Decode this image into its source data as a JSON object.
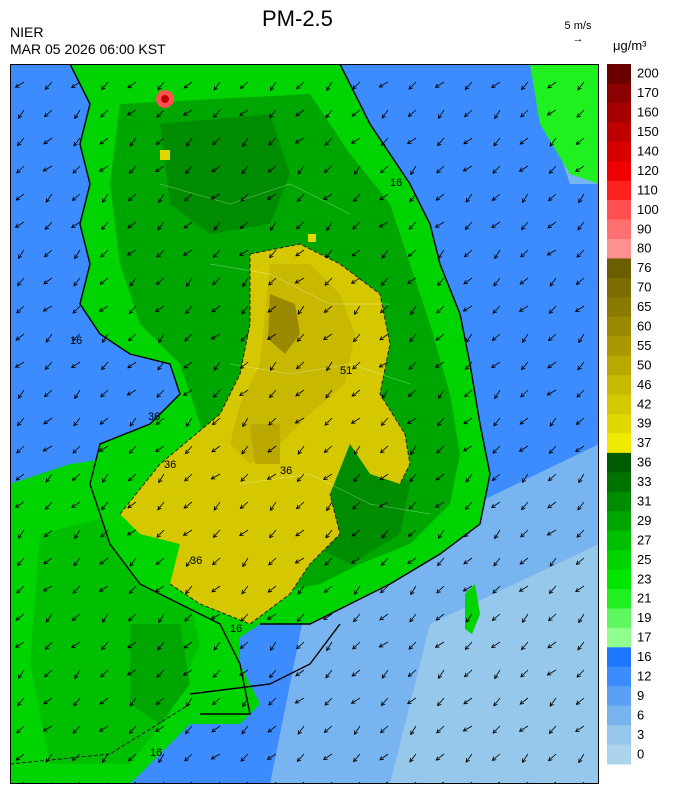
{
  "header": {
    "organization": "NIER",
    "timestamp": "MAR 05 2026 06:00 KST",
    "title": "PM-2.5",
    "wind_reference": "5 m/s",
    "unit": "μg/m³"
  },
  "map": {
    "variable": "PM-2.5",
    "wind_direction": "northeasterly (arrows pointing southwest)",
    "contour_labels": [
      "16",
      "16",
      "16",
      "16",
      "36",
      "36",
      "36",
      "36",
      "51"
    ]
  },
  "legend": {
    "levels": [
      {
        "label": "200",
        "color": "#6b0000"
      },
      {
        "label": "170",
        "color": "#8b0000"
      },
      {
        "label": "160",
        "color": "#a50000"
      },
      {
        "label": "150",
        "color": "#bf0000"
      },
      {
        "label": "140",
        "color": "#d60000"
      },
      {
        "label": "120",
        "color": "#ee0000"
      },
      {
        "label": "110",
        "color": "#ff2020"
      },
      {
        "label": "100",
        "color": "#ff5050"
      },
      {
        "label": "90",
        "color": "#ff7070"
      },
      {
        "label": "80",
        "color": "#ff9090"
      },
      {
        "label": "76",
        "color": "#6b5e00"
      },
      {
        "label": "70",
        "color": "#7a6c00"
      },
      {
        "label": "65",
        "color": "#8a7a00"
      },
      {
        "label": "60",
        "color": "#9a8900"
      },
      {
        "label": "55",
        "color": "#aa9800"
      },
      {
        "label": "50",
        "color": "#baa800"
      },
      {
        "label": "46",
        "color": "#c8b800"
      },
      {
        "label": "42",
        "color": "#d6c800"
      },
      {
        "label": "39",
        "color": "#e2d800"
      },
      {
        "label": "37",
        "color": "#f0ea00"
      },
      {
        "label": "36",
        "color": "#005a00"
      },
      {
        "label": "33",
        "color": "#007200"
      },
      {
        "label": "31",
        "color": "#008c00"
      },
      {
        "label": "29",
        "color": "#00a600"
      },
      {
        "label": "27",
        "color": "#00bf00"
      },
      {
        "label": "25",
        "color": "#00d400"
      },
      {
        "label": "23",
        "color": "#00e600"
      },
      {
        "label": "21",
        "color": "#20f020"
      },
      {
        "label": "19",
        "color": "#60f860"
      },
      {
        "label": "17",
        "color": "#90ff90"
      },
      {
        "label": "16",
        "color": "#1e78ff"
      },
      {
        "label": "12",
        "color": "#3c8cff"
      },
      {
        "label": "9",
        "color": "#5aa0f5"
      },
      {
        "label": "6",
        "color": "#78b4f0"
      },
      {
        "label": "3",
        "color": "#96c8eb"
      },
      {
        "label": "0",
        "color": "#aad4ec"
      }
    ]
  }
}
